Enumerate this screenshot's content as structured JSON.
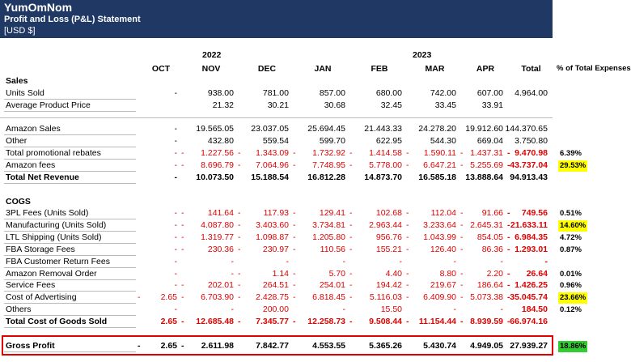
{
  "header": {
    "company": "YumOmNom",
    "title": "Profit and Loss (P&L) Statement",
    "currency": "[USD $]"
  },
  "years": [
    "2022",
    "2023"
  ],
  "columns": [
    "OCT",
    "NOV",
    "DEC",
    "JAN",
    "FEB",
    "MAR",
    "APR",
    "Total",
    "% of Total Expenses"
  ],
  "rows": [
    {
      "heading": "Sales"
    },
    {
      "label": "Units Sold",
      "cells": [
        "-",
        "938.00",
        "781.00",
        "857.00",
        "680.00",
        "742.00",
        "607.00",
        "4.964.00"
      ]
    },
    {
      "label": "Average Product Price",
      "cells": [
        null,
        "21.32",
        "30.21",
        "30.68",
        "32.45",
        "33.45",
        "33.91",
        null
      ]
    },
    null,
    {
      "label": "Amazon Sales",
      "cells": [
        "-",
        "19.565.05",
        "23.037.05",
        "25.694.45",
        "21.443.33",
        "24.278.20",
        "19.912.60",
        "144.370.65"
      ]
    },
    {
      "label": "Other",
      "cells": [
        "-",
        "432.80",
        "559.54",
        "599.70",
        "622.95",
        "544.30",
        "669.04",
        "3.750.80"
      ]
    },
    {
      "label": "Total promotional rebates",
      "color": "#e00000",
      "pct": "6.39%",
      "cells": [
        "-",
        {
          "sign": "-",
          "value": "1.227.56"
        },
        {
          "sign": "-",
          "value": "1.343.09"
        },
        {
          "sign": "-",
          "value": "1.732.92"
        },
        {
          "sign": "-",
          "value": "1.414.58"
        },
        {
          "sign": "-",
          "value": "1.590.11"
        },
        {
          "sign": "-",
          "value": "1.437.31"
        },
        {
          "sign": "-",
          "value": "9.470.98"
        }
      ]
    },
    {
      "label": "Amazon fees",
      "color": "#e00000",
      "pct": "29.53%",
      "pct_highlight": "#ffff00",
      "cells": [
        "-",
        {
          "sign": "-",
          "value": "8.696.79"
        },
        {
          "sign": "-",
          "value": "7.064.96"
        },
        {
          "sign": "-",
          "value": "7.748.95"
        },
        {
          "sign": "-",
          "value": "5.778.00"
        },
        {
          "sign": "-",
          "value": "6.647.21"
        },
        {
          "sign": "-",
          "value": "5.255.69"
        },
        {
          "sign": "-",
          "value": "43.737.04"
        }
      ]
    },
    {
      "label": "Total Net Revenue",
      "bold": true,
      "cells": [
        "-",
        "10.073.50",
        "15.188.54",
        "16.812.28",
        "14.873.70",
        "16.585.18",
        "13.888.64",
        "94.913.43"
      ]
    },
    null,
    {
      "heading": "COGS"
    },
    {
      "label": "3PL Fees (Units Sold)",
      "color": "#e00000",
      "pct": "0.51%",
      "cells": [
        "-",
        {
          "sign": "-",
          "value": "141.64"
        },
        {
          "sign": "-",
          "value": "117.93"
        },
        {
          "sign": "-",
          "value": "129.41"
        },
        {
          "sign": "-",
          "value": "102.68"
        },
        {
          "sign": "-",
          "value": "112.04"
        },
        {
          "sign": "-",
          "value": "91.66"
        },
        {
          "sign": "-",
          "value": "749.56"
        }
      ]
    },
    {
      "label": "Manufacturing (Units Sold)",
      "color": "#e00000",
      "pct": "14.60%",
      "pct_highlight": "#ffff00",
      "cells": [
        "-",
        {
          "sign": "-",
          "value": "4.087.80"
        },
        {
          "sign": "-",
          "value": "3.403.60"
        },
        {
          "sign": "-",
          "value": "3.734.81"
        },
        {
          "sign": "-",
          "value": "2.963.44"
        },
        {
          "sign": "-",
          "value": "3.233.64"
        },
        {
          "sign": "-",
          "value": "2.645.31"
        },
        {
          "sign": "-",
          "value": "21.633.11"
        }
      ]
    },
    {
      "label": "LTL Shipping (Units Sold)",
      "color": "#e00000",
      "pct": "4.72%",
      "cells": [
        "-",
        {
          "sign": "-",
          "value": "1.319.77"
        },
        {
          "sign": "-",
          "value": "1.098.87"
        },
        {
          "sign": "-",
          "value": "1.205.80"
        },
        {
          "sign": "-",
          "value": "956.76"
        },
        {
          "sign": "-",
          "value": "1.043.99"
        },
        {
          "sign": "-",
          "value": "854.05"
        },
        {
          "sign": "-",
          "value": "6.984.35"
        }
      ]
    },
    {
      "label": "FBA Storage Fees",
      "color": "#e00000",
      "pct": "0.87%",
      "cells": [
        "-",
        {
          "sign": "-",
          "value": "230.36"
        },
        {
          "sign": "-",
          "value": "230.97"
        },
        {
          "sign": "-",
          "value": "110.56"
        },
        {
          "sign": "-",
          "value": "155.21"
        },
        {
          "sign": "-",
          "value": "126.40"
        },
        {
          "sign": "-",
          "value": "86.36"
        },
        {
          "sign": "-",
          "value": "1.293.01"
        }
      ]
    },
    {
      "label": "FBA Customer Return Fees",
      "color": "#e00000",
      "cells": [
        "-",
        "-",
        "-",
        "-",
        "-",
        "-",
        "-",
        "-"
      ]
    },
    {
      "label": "Amazon Removal Order",
      "color": "#e00000",
      "pct": "0.01%",
      "cells": [
        "-",
        "-",
        {
          "sign": "-",
          "value": "1.14"
        },
        {
          "sign": "-",
          "value": "5.70"
        },
        {
          "sign": "-",
          "value": "4.40"
        },
        {
          "sign": "-",
          "value": "8.80"
        },
        {
          "sign": "-",
          "value": "2.20"
        },
        {
          "sign": "-",
          "value": "26.64"
        }
      ]
    },
    {
      "label": "Service Fees",
      "color": "#e00000",
      "pct": "0.96%",
      "cells": [
        "-",
        {
          "sign": "-",
          "value": "202.01"
        },
        {
          "sign": "-",
          "value": "264.51"
        },
        {
          "sign": "-",
          "value": "254.01"
        },
        {
          "sign": "-",
          "value": "194.42"
        },
        {
          "sign": "-",
          "value": "219.67"
        },
        {
          "sign": "-",
          "value": "186.64"
        },
        {
          "sign": "-",
          "value": "1.426.25"
        }
      ]
    },
    {
      "label": "Cost of Advertising",
      "color": "#e00000",
      "pct": "23.66%",
      "pct_highlight": "#ffff00",
      "cells": [
        {
          "sign": "-",
          "value": "2.65"
        },
        {
          "sign": "-",
          "value": "6.703.90"
        },
        {
          "sign": "-",
          "value": "2.428.75"
        },
        {
          "sign": "-",
          "value": "6.818.45"
        },
        {
          "sign": "-",
          "value": "5.116.03"
        },
        {
          "sign": "-",
          "value": "6.409.90"
        },
        {
          "sign": "-",
          "value": "5.073.38"
        },
        {
          "sign": "-",
          "value": "35.045.74"
        }
      ]
    },
    {
      "label": "Others",
      "color": "#e00000",
      "pct": "0.12%",
      "cells": [
        "-",
        "-",
        "200.00",
        "-",
        "15.50",
        "-",
        "-",
        "184.50"
      ]
    },
    {
      "label": "Total Cost of Goods Sold",
      "bold": true,
      "color": "#e00000",
      "cells": [
        "2.65",
        {
          "sign": "-",
          "value": "12.685.48"
        },
        {
          "sign": "-",
          "value": "7.345.77"
        },
        {
          "sign": "-",
          "value": "12.258.73"
        },
        {
          "sign": "-",
          "value": "9.508.44"
        },
        {
          "sign": "-",
          "value": "11.154.44"
        },
        {
          "sign": "-",
          "value": "8.939.59"
        },
        {
          "sign": "-",
          "value": "66.974.16"
        }
      ]
    },
    null,
    {
      "label": "Gross Profit",
      "bold": true,
      "boxed": true,
      "pct": "18.86%",
      "pct_highlight": "#33cc33",
      "cells": [
        {
          "sign": "-",
          "value": "2.65"
        },
        {
          "sign": "-",
          "value": "2.611.98"
        },
        "7.842.77",
        "4.553.55",
        "5.365.26",
        "5.430.74",
        "4.949.05",
        "27.939.27"
      ]
    }
  ]
}
